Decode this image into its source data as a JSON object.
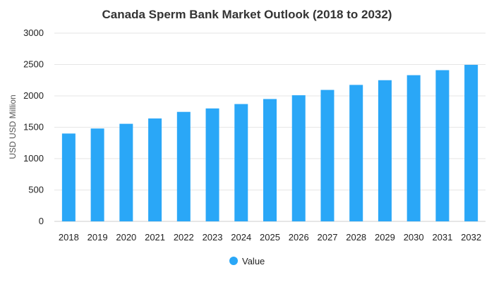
{
  "chart_data": {
    "type": "bar",
    "title": "Canada Sperm Bank Market Outlook (2018 to 2032)",
    "ylabel": "USD USD Million",
    "xlabel": "",
    "categories": [
      "2018",
      "2019",
      "2020",
      "2021",
      "2022",
      "2023",
      "2024",
      "2025",
      "2026",
      "2027",
      "2028",
      "2029",
      "2030",
      "2031",
      "2032"
    ],
    "series": [
      {
        "name": "Value",
        "values": [
          1400,
          1480,
          1555,
          1640,
          1745,
          1800,
          1870,
          1950,
          2010,
          2095,
          2175,
          2250,
          2330,
          2410,
          2495
        ]
      }
    ],
    "ylim": [
      0,
      3000
    ],
    "yticks": [
      0,
      500,
      1000,
      1500,
      2000,
      2500,
      3000
    ],
    "grid": true,
    "legend": "bottom-center",
    "color": "#2aa7f7"
  }
}
